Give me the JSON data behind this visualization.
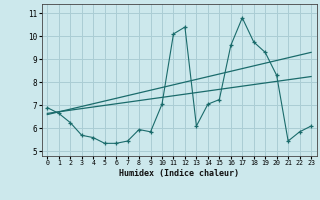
{
  "xlabel": "Humidex (Indice chaleur)",
  "ylabel": "",
  "bg_color": "#cce8ec",
  "grid_color": "#aacdd4",
  "line_color": "#1a6b6b",
  "xlim": [
    -0.5,
    23.5
  ],
  "ylim": [
    4.8,
    11.4
  ],
  "xticks": [
    0,
    1,
    2,
    3,
    4,
    5,
    6,
    7,
    8,
    9,
    10,
    11,
    12,
    13,
    14,
    15,
    16,
    17,
    18,
    19,
    20,
    21,
    22,
    23
  ],
  "yticks": [
    5,
    6,
    7,
    8,
    9,
    10,
    11
  ],
  "data_x": [
    0,
    1,
    2,
    3,
    4,
    5,
    6,
    7,
    8,
    9,
    10,
    11,
    12,
    13,
    14,
    15,
    16,
    17,
    18,
    19,
    20,
    21,
    22,
    23
  ],
  "data_y": [
    6.9,
    6.65,
    6.25,
    5.7,
    5.6,
    5.35,
    5.35,
    5.45,
    5.95,
    5.85,
    7.05,
    10.1,
    10.4,
    6.1,
    7.05,
    7.25,
    9.6,
    10.8,
    9.75,
    9.3,
    8.3,
    5.45,
    5.85,
    6.1
  ],
  "trend1_x": [
    0,
    23
  ],
  "trend1_y": [
    6.6,
    9.3
  ],
  "trend2_x": [
    0,
    23
  ],
  "trend2_y": [
    6.65,
    8.25
  ],
  "marker_size": 3.5
}
